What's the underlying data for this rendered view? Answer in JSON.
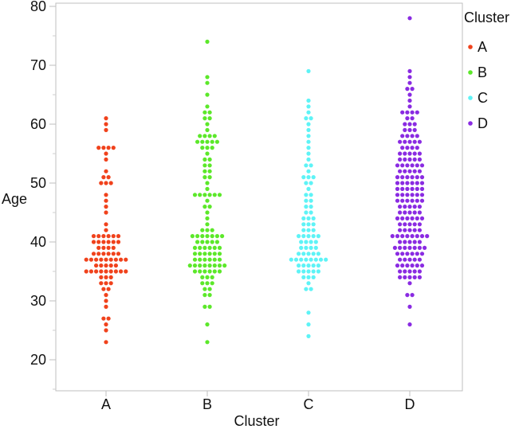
{
  "chart_data": {
    "type": "scatter",
    "subtype": "beeswarm",
    "title": "",
    "xlabel": "Cluster",
    "ylabel": "Age",
    "categories": [
      "A",
      "B",
      "C",
      "D"
    ],
    "ylim": [
      15,
      80
    ],
    "yticks": [
      20,
      30,
      40,
      50,
      60,
      70,
      80
    ],
    "grid": false,
    "legend": {
      "title": "Cluster",
      "position": "right"
    },
    "series": [
      {
        "name": "A",
        "color": "#f0421c",
        "values": [
          23,
          25,
          26,
          27,
          27,
          29,
          30,
          31,
          32,
          32,
          33,
          33,
          33,
          34,
          34,
          34,
          35,
          35,
          35,
          35,
          35,
          35,
          35,
          35,
          35,
          36,
          36,
          36,
          36,
          36,
          37,
          37,
          37,
          37,
          37,
          37,
          37,
          37,
          37,
          38,
          38,
          38,
          38,
          38,
          38,
          39,
          39,
          39,
          39,
          40,
          40,
          40,
          40,
          40,
          40,
          41,
          41,
          41,
          41,
          41,
          41,
          42,
          43,
          45,
          46,
          47,
          48,
          50,
          50,
          50,
          51,
          51,
          52,
          54,
          55,
          56,
          56,
          56,
          56,
          59,
          60,
          61
        ]
      },
      {
        "name": "B",
        "color": "#5ce82a",
        "values": [
          23,
          26,
          29,
          29,
          31,
          31,
          32,
          32,
          33,
          33,
          33,
          34,
          34,
          34,
          35,
          35,
          35,
          35,
          35,
          35,
          36,
          36,
          36,
          36,
          36,
          36,
          36,
          36,
          37,
          37,
          37,
          37,
          37,
          37,
          38,
          38,
          38,
          38,
          38,
          38,
          39,
          39,
          39,
          39,
          39,
          39,
          40,
          40,
          40,
          40,
          40,
          41,
          41,
          41,
          41,
          41,
          41,
          41,
          42,
          42,
          42,
          43,
          44,
          45,
          46,
          46,
          47,
          48,
          48,
          48,
          48,
          48,
          48,
          49,
          50,
          51,
          51,
          52,
          52,
          53,
          53,
          54,
          54,
          55,
          56,
          56,
          56,
          57,
          57,
          57,
          57,
          57,
          58,
          58,
          58,
          58,
          59,
          60,
          61,
          61,
          62,
          62,
          63,
          65,
          67,
          68,
          74
        ]
      },
      {
        "name": "C",
        "color": "#5ef3f6",
        "values": [
          24,
          26,
          28,
          32,
          32,
          33,
          34,
          34,
          34,
          35,
          35,
          35,
          35,
          35,
          36,
          36,
          36,
          36,
          36,
          37,
          37,
          37,
          37,
          37,
          37,
          37,
          37,
          38,
          38,
          38,
          38,
          38,
          39,
          39,
          39,
          39,
          40,
          40,
          40,
          40,
          41,
          41,
          41,
          41,
          41,
          42,
          42,
          42,
          43,
          43,
          43,
          44,
          44,
          44,
          45,
          45,
          46,
          46,
          47,
          47,
          48,
          48,
          49,
          50,
          50,
          51,
          51,
          51,
          52,
          53,
          53,
          54,
          55,
          56,
          57,
          58,
          59,
          60,
          61,
          61,
          62,
          63,
          64,
          69
        ]
      },
      {
        "name": "D",
        "color": "#8a2be2",
        "values": [
          26,
          29,
          31,
          31,
          33,
          34,
          34,
          34,
          34,
          34,
          35,
          35,
          35,
          35,
          35,
          36,
          36,
          36,
          36,
          36,
          36,
          37,
          37,
          37,
          37,
          37,
          38,
          38,
          38,
          38,
          38,
          38,
          39,
          39,
          39,
          39,
          39,
          39,
          39,
          40,
          40,
          40,
          40,
          40,
          41,
          41,
          41,
          41,
          41,
          41,
          41,
          41,
          42,
          42,
          42,
          42,
          42,
          43,
          43,
          43,
          43,
          43,
          44,
          44,
          44,
          44,
          44,
          44,
          45,
          45,
          45,
          45,
          45,
          46,
          46,
          46,
          46,
          46,
          47,
          47,
          47,
          47,
          47,
          47,
          48,
          48,
          48,
          48,
          48,
          48,
          49,
          49,
          49,
          49,
          49,
          49,
          50,
          50,
          50,
          50,
          50,
          50,
          51,
          51,
          51,
          51,
          51,
          51,
          52,
          52,
          52,
          52,
          52,
          53,
          53,
          53,
          53,
          53,
          53,
          54,
          54,
          54,
          54,
          54,
          55,
          55,
          55,
          55,
          55,
          56,
          56,
          56,
          56,
          57,
          57,
          57,
          57,
          57,
          58,
          58,
          58,
          58,
          59,
          59,
          59,
          60,
          60,
          60,
          61,
          61,
          62,
          62,
          62,
          62,
          63,
          64,
          65,
          66,
          66,
          67,
          68,
          69,
          78
        ]
      }
    ]
  }
}
